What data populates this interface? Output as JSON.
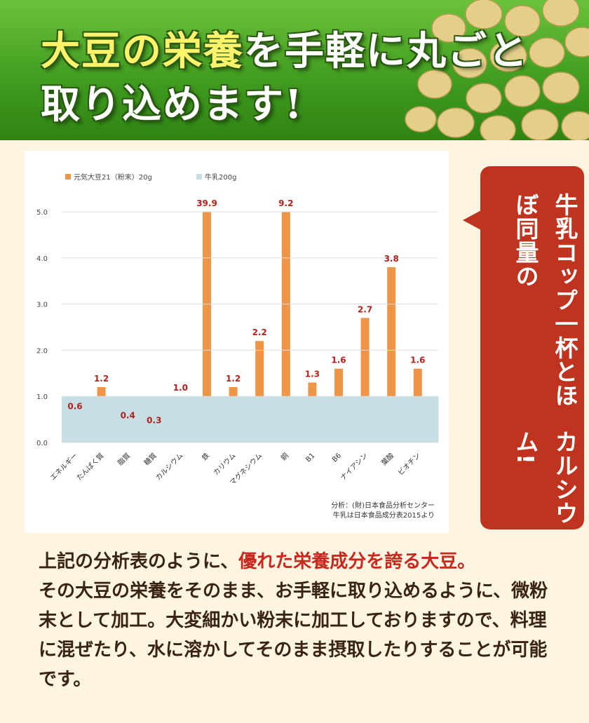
{
  "header": {
    "title_highlight": "大豆の栄養",
    "title_rest": "を手軽に丸ごと",
    "title_line2": "取り込めます!"
  },
  "chart_data": {
    "type": "bar",
    "categories": [
      "エネルギー",
      "たんぱく質",
      "脂質",
      "糖質",
      "カルシウム",
      "鉄",
      "カリウム",
      "マグネシウム",
      "銅",
      "B1",
      "B6",
      "ナイアシン",
      "葉酸",
      "ビオチン"
    ],
    "series": [
      {
        "name": "元気大豆21（粉末）20g",
        "color": "#ee9547",
        "values": [
          0.6,
          1.2,
          0.4,
          0.3,
          1.0,
          39.9,
          1.2,
          2.2,
          9.2,
          1.3,
          1.6,
          2.7,
          3.8,
          1.6
        ],
        "value_labels": [
          "0.6",
          "1.2",
          "0.4",
          "0.3",
          "1.0",
          "39.9",
          "1.2",
          "2.2",
          "9.2",
          "1.3",
          "1.6",
          "2.7",
          "3.8",
          "1.6"
        ]
      },
      {
        "name": "牛乳200g",
        "color": "#c6dfe4",
        "values": [
          1,
          1,
          1,
          1,
          1,
          1,
          1,
          1,
          1,
          1,
          1,
          1,
          1,
          1
        ]
      }
    ],
    "ylim": [
      0,
      5
    ],
    "yticks": [
      {
        "value": 0,
        "label": "0.0"
      },
      {
        "value": 1,
        "label": "1.0"
      },
      {
        "value": 2,
        "label": "2.0"
      },
      {
        "value": 3,
        "label": "3.0"
      },
      {
        "value": 4,
        "label": "4.0"
      },
      {
        "value": 5,
        "label": "5.0"
      }
    ],
    "grid": true,
    "notes": [
      "分析：(財)日本食品分析センター",
      "牛乳は日本食品成分表2015より"
    ]
  },
  "callout": {
    "lines": [
      "牛乳コップ一杯とほぼ同量の",
      "カルシウム!"
    ]
  },
  "body": {
    "before": "上記の分析表のように、",
    "highlight": "優れた栄養成分を誇る大豆。",
    "after": "その大豆の栄養をそのまま、お手軽に取り込めるように、微粉末として加工。大変細かい粉末に加工しておりますので、料理に混ぜたり、水に溶かしてそのまま摂取したりすることが可能です。"
  }
}
